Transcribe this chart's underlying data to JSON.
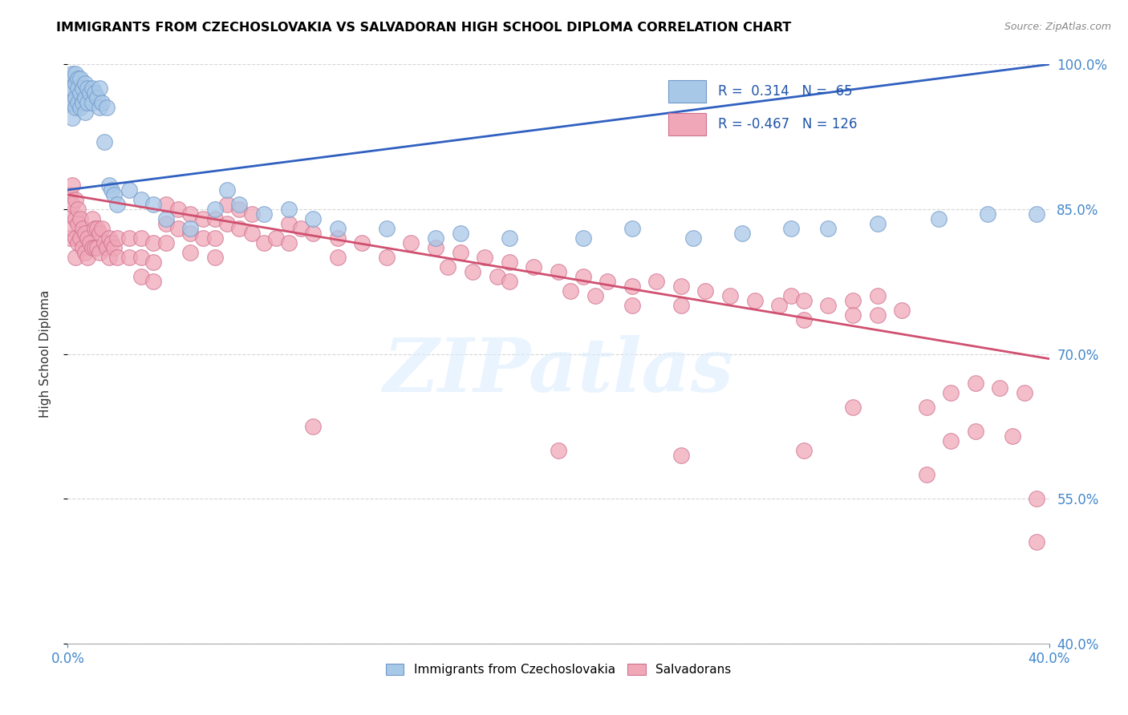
{
  "title": "IMMIGRANTS FROM CZECHOSLOVAKIA VS SALVADORAN HIGH SCHOOL DIPLOMA CORRELATION CHART",
  "source": "Source: ZipAtlas.com",
  "ylabel": "High School Diploma",
  "blue_R": 0.314,
  "blue_N": 65,
  "pink_R": -0.467,
  "pink_N": 126,
  "blue_color": "#A8C8E8",
  "pink_color": "#F0A8B8",
  "blue_edge_color": "#7098C8",
  "pink_edge_color": "#D07090",
  "blue_line_color": "#3060C0",
  "pink_line_color": "#D05070",
  "legend_blue": "Immigrants from Czechoslovakia",
  "legend_pink": "Salvadorans",
  "x_min": 0.0,
  "x_max": 0.4,
  "y_min": 0.4,
  "y_max": 1.0,
  "watermark": "ZIPatlas",
  "blue_dots": [
    [
      0.001,
      0.985
    ],
    [
      0.001,
      0.975
    ],
    [
      0.001,
      0.96
    ],
    [
      0.002,
      0.99
    ],
    [
      0.002,
      0.975
    ],
    [
      0.002,
      0.96
    ],
    [
      0.002,
      0.945
    ],
    [
      0.003,
      0.99
    ],
    [
      0.003,
      0.98
    ],
    [
      0.003,
      0.965
    ],
    [
      0.003,
      0.955
    ],
    [
      0.004,
      0.985
    ],
    [
      0.004,
      0.975
    ],
    [
      0.004,
      0.96
    ],
    [
      0.005,
      0.985
    ],
    [
      0.005,
      0.97
    ],
    [
      0.005,
      0.955
    ],
    [
      0.006,
      0.975
    ],
    [
      0.006,
      0.96
    ],
    [
      0.007,
      0.98
    ],
    [
      0.007,
      0.965
    ],
    [
      0.007,
      0.95
    ],
    [
      0.008,
      0.975
    ],
    [
      0.008,
      0.96
    ],
    [
      0.009,
      0.97
    ],
    [
      0.01,
      0.975
    ],
    [
      0.01,
      0.96
    ],
    [
      0.011,
      0.97
    ],
    [
      0.012,
      0.965
    ],
    [
      0.013,
      0.975
    ],
    [
      0.013,
      0.955
    ],
    [
      0.014,
      0.96
    ],
    [
      0.015,
      0.92
    ],
    [
      0.016,
      0.955
    ],
    [
      0.017,
      0.875
    ],
    [
      0.018,
      0.87
    ],
    [
      0.019,
      0.865
    ],
    [
      0.02,
      0.855
    ],
    [
      0.025,
      0.87
    ],
    [
      0.03,
      0.86
    ],
    [
      0.035,
      0.855
    ],
    [
      0.04,
      0.84
    ],
    [
      0.05,
      0.83
    ],
    [
      0.06,
      0.85
    ],
    [
      0.065,
      0.87
    ],
    [
      0.07,
      0.855
    ],
    [
      0.08,
      0.845
    ],
    [
      0.09,
      0.85
    ],
    [
      0.1,
      0.84
    ],
    [
      0.11,
      0.83
    ],
    [
      0.13,
      0.83
    ],
    [
      0.15,
      0.82
    ],
    [
      0.16,
      0.825
    ],
    [
      0.18,
      0.82
    ],
    [
      0.21,
      0.82
    ],
    [
      0.23,
      0.83
    ],
    [
      0.255,
      0.82
    ],
    [
      0.275,
      0.825
    ],
    [
      0.295,
      0.83
    ],
    [
      0.31,
      0.83
    ],
    [
      0.33,
      0.835
    ],
    [
      0.355,
      0.84
    ],
    [
      0.375,
      0.845
    ],
    [
      0.395,
      0.845
    ]
  ],
  "pink_dots": [
    [
      0.001,
      0.865
    ],
    [
      0.001,
      0.845
    ],
    [
      0.001,
      0.82
    ],
    [
      0.002,
      0.875
    ],
    [
      0.002,
      0.855
    ],
    [
      0.002,
      0.83
    ],
    [
      0.003,
      0.86
    ],
    [
      0.003,
      0.84
    ],
    [
      0.003,
      0.82
    ],
    [
      0.003,
      0.8
    ],
    [
      0.004,
      0.85
    ],
    [
      0.004,
      0.835
    ],
    [
      0.004,
      0.815
    ],
    [
      0.005,
      0.84
    ],
    [
      0.005,
      0.82
    ],
    [
      0.006,
      0.83
    ],
    [
      0.006,
      0.81
    ],
    [
      0.007,
      0.825
    ],
    [
      0.007,
      0.805
    ],
    [
      0.008,
      0.82
    ],
    [
      0.008,
      0.8
    ],
    [
      0.009,
      0.815
    ],
    [
      0.01,
      0.84
    ],
    [
      0.01,
      0.81
    ],
    [
      0.011,
      0.83
    ],
    [
      0.011,
      0.81
    ],
    [
      0.012,
      0.83
    ],
    [
      0.012,
      0.81
    ],
    [
      0.013,
      0.825
    ],
    [
      0.013,
      0.805
    ],
    [
      0.014,
      0.83
    ],
    [
      0.015,
      0.815
    ],
    [
      0.016,
      0.81
    ],
    [
      0.017,
      0.8
    ],
    [
      0.017,
      0.82
    ],
    [
      0.018,
      0.815
    ],
    [
      0.019,
      0.81
    ],
    [
      0.02,
      0.82
    ],
    [
      0.02,
      0.8
    ],
    [
      0.025,
      0.82
    ],
    [
      0.025,
      0.8
    ],
    [
      0.03,
      0.82
    ],
    [
      0.03,
      0.8
    ],
    [
      0.03,
      0.78
    ],
    [
      0.035,
      0.815
    ],
    [
      0.035,
      0.795
    ],
    [
      0.035,
      0.775
    ],
    [
      0.04,
      0.855
    ],
    [
      0.04,
      0.835
    ],
    [
      0.04,
      0.815
    ],
    [
      0.045,
      0.85
    ],
    [
      0.045,
      0.83
    ],
    [
      0.05,
      0.845
    ],
    [
      0.05,
      0.825
    ],
    [
      0.05,
      0.805
    ],
    [
      0.055,
      0.84
    ],
    [
      0.055,
      0.82
    ],
    [
      0.06,
      0.84
    ],
    [
      0.06,
      0.82
    ],
    [
      0.06,
      0.8
    ],
    [
      0.065,
      0.855
    ],
    [
      0.065,
      0.835
    ],
    [
      0.07,
      0.85
    ],
    [
      0.07,
      0.83
    ],
    [
      0.075,
      0.845
    ],
    [
      0.075,
      0.825
    ],
    [
      0.08,
      0.815
    ],
    [
      0.085,
      0.82
    ],
    [
      0.09,
      0.835
    ],
    [
      0.09,
      0.815
    ],
    [
      0.095,
      0.83
    ],
    [
      0.1,
      0.825
    ],
    [
      0.11,
      0.82
    ],
    [
      0.11,
      0.8
    ],
    [
      0.12,
      0.815
    ],
    [
      0.13,
      0.8
    ],
    [
      0.14,
      0.815
    ],
    [
      0.15,
      0.81
    ],
    [
      0.155,
      0.79
    ],
    [
      0.16,
      0.805
    ],
    [
      0.165,
      0.785
    ],
    [
      0.17,
      0.8
    ],
    [
      0.175,
      0.78
    ],
    [
      0.18,
      0.795
    ],
    [
      0.18,
      0.775
    ],
    [
      0.19,
      0.79
    ],
    [
      0.2,
      0.785
    ],
    [
      0.205,
      0.765
    ],
    [
      0.21,
      0.78
    ],
    [
      0.215,
      0.76
    ],
    [
      0.22,
      0.775
    ],
    [
      0.23,
      0.77
    ],
    [
      0.23,
      0.75
    ],
    [
      0.24,
      0.775
    ],
    [
      0.25,
      0.77
    ],
    [
      0.25,
      0.75
    ],
    [
      0.26,
      0.765
    ],
    [
      0.27,
      0.76
    ],
    [
      0.28,
      0.755
    ],
    [
      0.29,
      0.75
    ],
    [
      0.295,
      0.76
    ],
    [
      0.3,
      0.755
    ],
    [
      0.3,
      0.735
    ],
    [
      0.31,
      0.75
    ],
    [
      0.32,
      0.755
    ],
    [
      0.32,
      0.74
    ],
    [
      0.33,
      0.76
    ],
    [
      0.33,
      0.74
    ],
    [
      0.34,
      0.745
    ],
    [
      0.35,
      0.645
    ],
    [
      0.36,
      0.66
    ],
    [
      0.37,
      0.67
    ],
    [
      0.38,
      0.665
    ],
    [
      0.39,
      0.66
    ],
    [
      0.395,
      0.55
    ],
    [
      0.1,
      0.625
    ],
    [
      0.2,
      0.6
    ],
    [
      0.25,
      0.595
    ],
    [
      0.3,
      0.6
    ],
    [
      0.32,
      0.645
    ],
    [
      0.35,
      0.575
    ],
    [
      0.36,
      0.61
    ],
    [
      0.37,
      0.62
    ],
    [
      0.385,
      0.615
    ],
    [
      0.395,
      0.505
    ]
  ],
  "blue_line_x0": 0.0,
  "blue_line_y0": 0.87,
  "blue_line_x1": 0.4,
  "blue_line_y1": 1.0,
  "pink_line_x0": 0.0,
  "pink_line_y0": 0.865,
  "pink_line_x1": 0.4,
  "pink_line_y1": 0.695
}
